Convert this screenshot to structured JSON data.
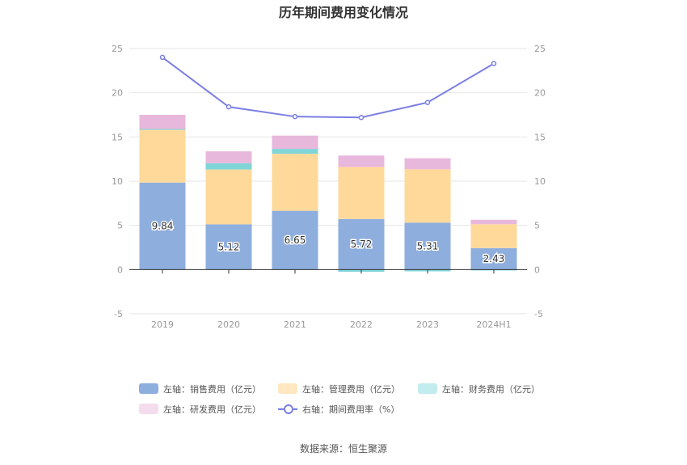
{
  "title": "历年期间费用变化情况",
  "source": "数据来源：恒生聚源",
  "colors": {
    "sales": "#8eaedd",
    "admin": "#ffd99a",
    "finance": "#7fd5d8",
    "rnd": "#e8b8dc",
    "rate": "#7b7fe3",
    "grid": "#e6e6e6",
    "axis_text": "#999999"
  },
  "chart_data": {
    "type": "bar",
    "stacked": true,
    "categories": [
      "2019",
      "2020",
      "2021",
      "2022",
      "2023",
      "2024H1"
    ],
    "series": [
      {
        "name": "左轴：销售费用（亿元）",
        "key": "sales",
        "axis": "left",
        "values": [
          9.84,
          5.12,
          6.65,
          5.72,
          5.31,
          2.43
        ]
      },
      {
        "name": "左轴：管理费用（亿元）",
        "key": "admin",
        "axis": "left",
        "values": [
          5.96,
          6.2,
          6.45,
          5.88,
          6.03,
          2.7
        ]
      },
      {
        "name": "左轴：财务费用（亿元）",
        "key": "finance",
        "axis": "left",
        "values": [
          0.1,
          0.7,
          0.55,
          -0.25,
          -0.2,
          -0.1
        ]
      },
      {
        "name": "左轴：研发费用（亿元）",
        "key": "rnd",
        "axis": "left",
        "values": [
          1.6,
          1.35,
          1.5,
          1.3,
          1.25,
          0.5
        ]
      }
    ],
    "line_series": {
      "name": "右轴：期间费用率（%）",
      "key": "rate",
      "axis": "right",
      "type": "line",
      "values": [
        24.0,
        18.4,
        17.3,
        17.2,
        18.9,
        23.3
      ]
    },
    "data_labels": [
      "9.84",
      "5.12",
      "6.65",
      "5.72",
      "5.31",
      "2.43"
    ],
    "left_axis": {
      "ylim": [
        -5,
        25
      ],
      "ticks": [
        "-5",
        "0",
        "5",
        "10",
        "15",
        "20",
        "25"
      ]
    },
    "right_axis": {
      "ylim": [
        -5,
        25
      ],
      "ticks": [
        "-5",
        "0",
        "5",
        "10",
        "15",
        "20",
        "25"
      ]
    },
    "grid": true,
    "legend_position": "bottom"
  }
}
